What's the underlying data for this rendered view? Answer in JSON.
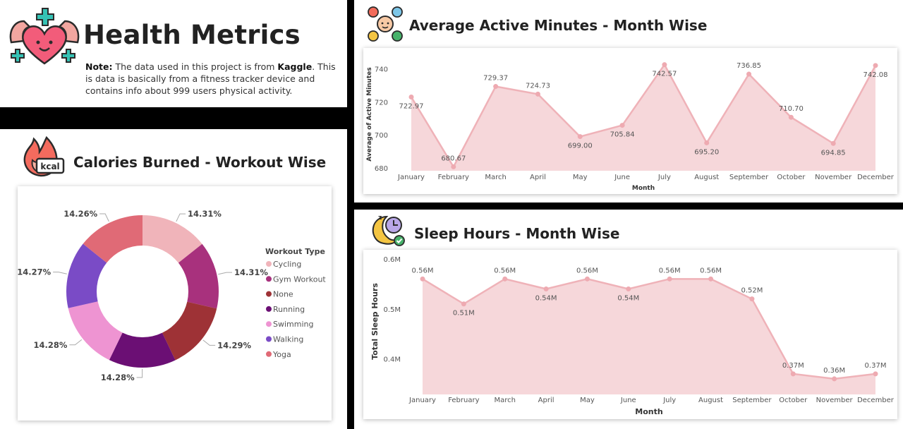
{
  "header": {
    "title": "Health Metrics",
    "note_label": "Note:",
    "note_text_1": " The data used in this project is from ",
    "note_source": "Kaggle",
    "note_text_2": ". This is data is basically from a fitness tracker device and contains info about 999 users physical activity.",
    "icon": "muscle-heart-icon"
  },
  "calories": {
    "title": "Calories Burned - Workout Wise",
    "icon": "flame-kcal-icon"
  },
  "active": {
    "title": "Average Active Minutes - Month Wise",
    "icon": "fitness-activities-icon"
  },
  "sleep": {
    "title": "Sleep Hours - Month Wise",
    "icon": "sleep-clock-icon"
  },
  "colors": {
    "area_fill": "#f6d7da",
    "area_line": "#efb2b8",
    "point": "#eeaab1"
  },
  "chart_data": [
    {
      "id": "calories",
      "type": "pie",
      "variant": "donut",
      "legend_title": "Workout Type",
      "legend_position": "right",
      "series": [
        {
          "name": "Cycling",
          "value": 14.31,
          "label": "14.31%",
          "color": "#f0b4ba"
        },
        {
          "name": "Gym Workout",
          "value": 14.31,
          "label": "14.31%",
          "color": "#a8317d"
        },
        {
          "name": "None",
          "value": 14.29,
          "label": "14.29%",
          "color": "#9e3236"
        },
        {
          "name": "Running",
          "value": 14.28,
          "label": "14.28%",
          "color": "#6b0f74"
        },
        {
          "name": "Swimming",
          "value": 14.28,
          "label": "14.28%",
          "color": "#ee94d2"
        },
        {
          "name": "Walking",
          "value": 14.27,
          "label": "14.27%",
          "color": "#7a4bc6"
        },
        {
          "name": "Yoga",
          "value": 14.26,
          "label": "14.26%",
          "color": "#e06a76"
        }
      ]
    },
    {
      "id": "active",
      "type": "area",
      "xlabel": "Month",
      "ylabel": "Average of Active Minutes",
      "ylim": [
        680,
        745
      ],
      "yticks": [
        680,
        700,
        720,
        740
      ],
      "grid": false,
      "categories": [
        "January",
        "February",
        "March",
        "April",
        "May",
        "June",
        "July",
        "August",
        "September",
        "October",
        "November",
        "December"
      ],
      "values": [
        722.97,
        680.67,
        729.37,
        724.73,
        699.0,
        705.84,
        742.57,
        695.2,
        736.85,
        710.7,
        694.85,
        742.08
      ],
      "labels": [
        "722.97",
        "680.67",
        "729.37",
        "724.73",
        "699.00",
        "705.84",
        "742.57",
        "695.20",
        "736.85",
        "710.70",
        "694.85",
        "742.08"
      ]
    },
    {
      "id": "sleep",
      "type": "area",
      "xlabel": "Month",
      "ylabel": "Total Sleep Hours",
      "ylim": [
        0.35,
        0.6
      ],
      "yticks": [
        0.4,
        0.5,
        0.6
      ],
      "ytick_labels": [
        "0.4M",
        "0.5M",
        "0.6M"
      ],
      "grid": false,
      "categories": [
        "January",
        "February",
        "March",
        "April",
        "May",
        "June",
        "July",
        "August",
        "September",
        "October",
        "November",
        "December"
      ],
      "values": [
        0.56,
        0.51,
        0.56,
        0.54,
        0.56,
        0.54,
        0.56,
        0.56,
        0.52,
        0.37,
        0.36,
        0.37
      ],
      "labels": [
        "0.56M",
        "0.51M",
        "0.56M",
        "0.54M",
        "0.56M",
        "0.54M",
        "0.56M",
        "0.56M",
        "0.52M",
        "0.37M",
        "0.36M",
        "0.37M"
      ]
    }
  ]
}
